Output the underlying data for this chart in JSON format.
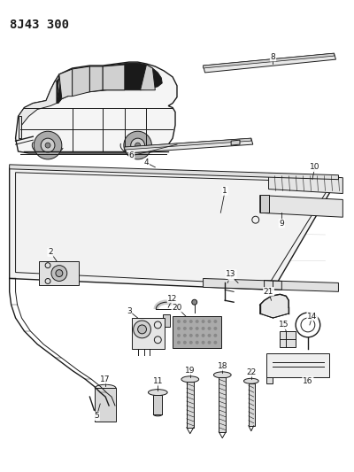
{
  "title": "8J43 300",
  "bg_color": "#ffffff",
  "fg_color": "#1a1a1a",
  "fig_width": 4.0,
  "fig_height": 5.33,
  "dpi": 100
}
